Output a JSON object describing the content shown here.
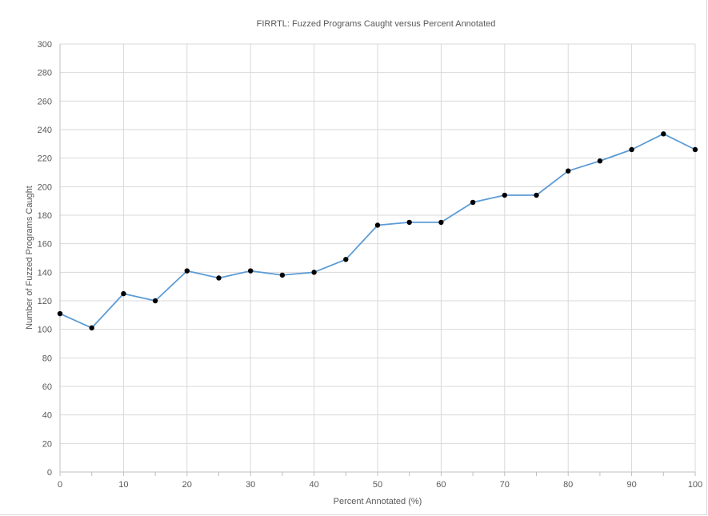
{
  "chart_data": {
    "type": "line",
    "title": "FIRRTL: Fuzzed Programs Caught versus Percent Annotated",
    "xlabel": "Percent Annotated (%)",
    "ylabel": "Number of Fuzzed Programs Caught",
    "xlim": [
      0,
      100
    ],
    "ylim": [
      0,
      300
    ],
    "x_ticks": [
      0,
      10,
      20,
      30,
      40,
      50,
      60,
      70,
      80,
      90,
      100
    ],
    "y_ticks": [
      0,
      20,
      40,
      60,
      80,
      100,
      120,
      140,
      160,
      180,
      200,
      220,
      240,
      260,
      280,
      300
    ],
    "grid": true,
    "legend": "none",
    "series": [
      {
        "x": [
          0,
          5,
          10,
          15,
          20,
          25,
          30,
          35,
          40,
          45,
          50,
          55,
          60,
          65,
          70,
          75,
          80,
          85,
          90,
          95,
          100
        ],
        "values": [
          111,
          101,
          125,
          120,
          141,
          136,
          141,
          138,
          140,
          149,
          173,
          175,
          175,
          189,
          194,
          194,
          211,
          218,
          226,
          237,
          226
        ],
        "line_color": "#5b9bd5",
        "marker_color": "#000000"
      }
    ]
  }
}
